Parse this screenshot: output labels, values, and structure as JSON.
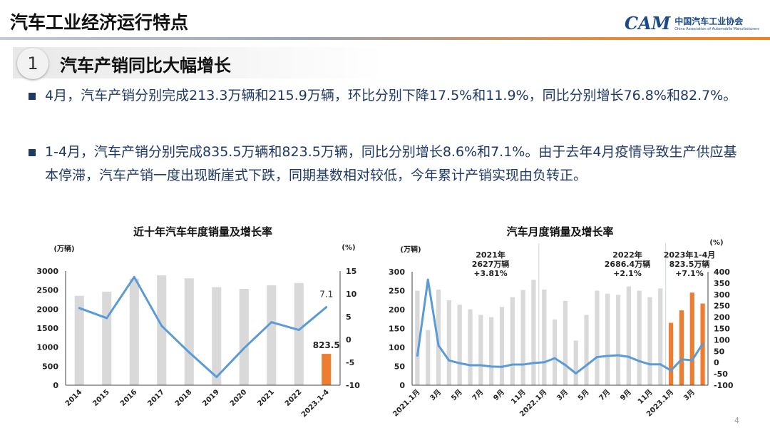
{
  "header": {
    "title": "汽车工业经济运行特点",
    "logo_cn": "中国汽车工业协会",
    "logo_en": "China Association of Automobile Manufacturers",
    "logo_mark": "CAM"
  },
  "section": {
    "number": "1",
    "title": "汽车产销同比大幅增长"
  },
  "bullets": [
    "4月，汽车产销分别完成213.3万辆和215.9万辆，环比分别下降17.5%和11.9%，同比分别增长76.8%和82.7%。",
    "1-4月，汽车产销分别完成835.5万辆和823.5万辆，同比分别增长8.6%和7.1%。由于去年4月疫情导致生产供应基本停滞，汽车产销一度出现断崖式下跌，同期基数相对较低，今年累计产销实现由负转正。"
  ],
  "page_number": "4",
  "colors": {
    "bar": "#d9d9d9",
    "highlight": "#ed7d31",
    "line": "#5b9bd5",
    "text": "#1f3864"
  },
  "chart_data": [
    {
      "type": "bar+line",
      "title": "近十年汽车年度销量及增长率",
      "ylabel": "(万辆)",
      "y2label": "(%)",
      "categories": [
        "2014",
        "2015",
        "2016",
        "2017",
        "2018",
        "2019",
        "2020",
        "2021",
        "2022",
        "2023.1-4"
      ],
      "series": [
        {
          "name": "销量",
          "values": [
            2349,
            2460,
            2803,
            2888,
            2808,
            2577,
            2531,
            2627,
            2686,
            823.5
          ]
        },
        {
          "name": "增长率",
          "axis": "right",
          "values": [
            6.9,
            4.7,
            13.7,
            3.0,
            -2.8,
            -8.2,
            -1.9,
            3.8,
            2.1,
            7.1
          ]
        }
      ],
      "highlight_index": 9,
      "ylim": [
        0,
        3000
      ],
      "yticks": [
        0,
        500,
        1000,
        1500,
        2000,
        2500,
        3000
      ],
      "y2lim": [
        -10,
        15
      ],
      "y2ticks": [
        -10,
        -5,
        0,
        5,
        10,
        15
      ],
      "data_labels": {
        "bar": "823.5",
        "line": "7.1"
      }
    },
    {
      "type": "bar+line",
      "title": "汽车月度销量及增长率",
      "ylabel": "(万辆)",
      "y2label": "(%)",
      "categories": [
        "2021.1月",
        "2月",
        "3月",
        "4月",
        "5月",
        "6月",
        "7月",
        "8月",
        "9月",
        "10月",
        "11月",
        "12月",
        "2022.1月",
        "2月",
        "3月",
        "4月",
        "5月",
        "6月",
        "7月",
        "8月",
        "9月",
        "10月",
        "11月",
        "12月",
        "2023.1月",
        "2月",
        "3月",
        "4月"
      ],
      "tick_labels": [
        "2021.1月",
        "3月",
        "5月",
        "7月",
        "9月",
        "11月",
        "2022.1月",
        "3月",
        "5月",
        "7月",
        "9月",
        "11月",
        "2023.1月",
        "3月"
      ],
      "series": [
        {
          "name": "销量",
          "values": [
            250,
            146,
            253,
            225,
            213,
            201,
            186,
            180,
            207,
            233,
            252,
            279,
            253,
            174,
            223,
            118,
            186,
            250,
            242,
            239,
            261,
            250,
            233,
            256,
            165,
            198,
            245,
            216
          ]
        },
        {
          "name": "增长率",
          "axis": "right",
          "values": [
            30,
            365,
            75,
            9,
            -3,
            -12,
            -12,
            -18,
            -19,
            -9,
            -9,
            -2,
            1,
            19,
            -11,
            -48,
            -12,
            24,
            29,
            32,
            25,
            6,
            -8,
            -8,
            -35,
            14,
            10,
            83
          ]
        }
      ],
      "highlight_from": 24,
      "ylim": [
        0,
        300
      ],
      "yticks": [
        0,
        50,
        100,
        150,
        200,
        250,
        300
      ],
      "y2lim": [
        -100,
        400
      ],
      "y2ticks": [
        -100,
        -50,
        0,
        50,
        100,
        150,
        200,
        250,
        300,
        350,
        400
      ],
      "annotations": [
        [
          "2021年",
          "2627万辆",
          "+3.81%"
        ],
        [
          "2022年",
          "2686.4万辆",
          "+2.1%"
        ],
        [
          "2023年1-4月",
          "823.5万辆",
          "+7.1%"
        ]
      ]
    }
  ]
}
